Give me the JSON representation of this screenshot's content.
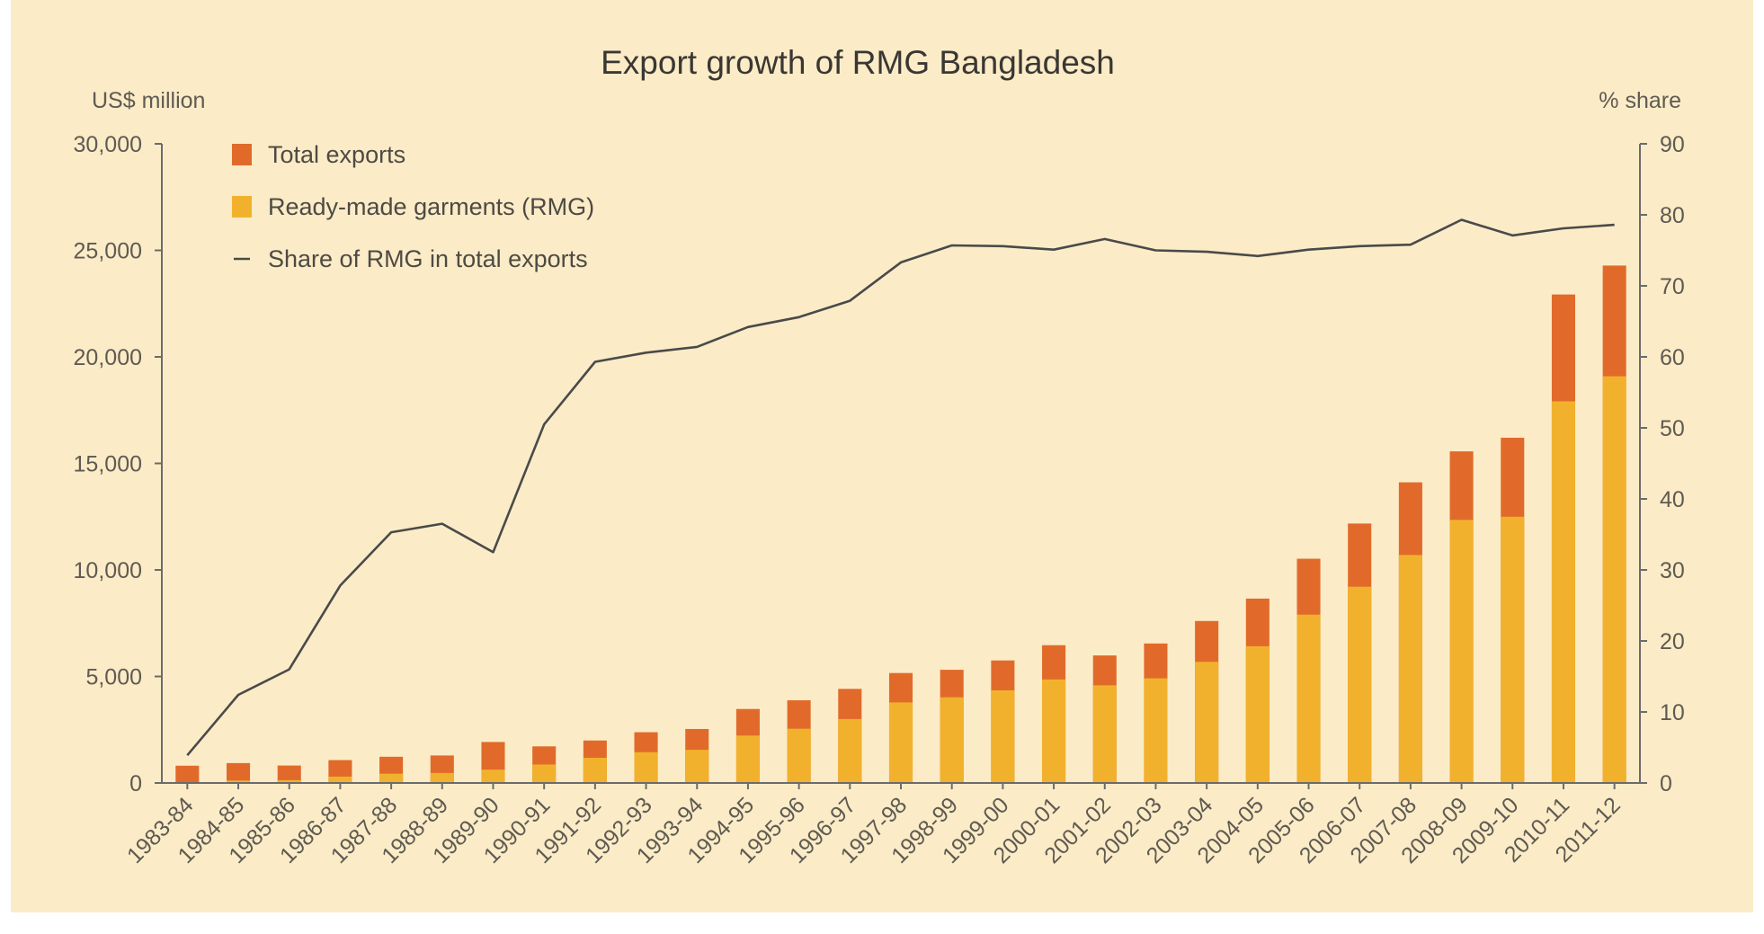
{
  "chart_data": {
    "type": "bar",
    "title": "Export growth of RMG Bangladesh",
    "ylabel_left": "US$ million",
    "ylabel_right": "% share",
    "ylim_left": [
      0,
      30000
    ],
    "ylim_right": [
      0,
      90
    ],
    "yticks_left": [
      "30,000",
      "25,000",
      "20,000",
      "15,000",
      "10,000",
      "5,000",
      "0"
    ],
    "yticks_right": [
      "90",
      "80",
      "70",
      "60",
      "50",
      "40",
      "30",
      "20",
      "10",
      "0"
    ],
    "categories": [
      "1983-84",
      "1984-85",
      "1985-86",
      "1986-87",
      "1987-88",
      "1988-89",
      "1989-90",
      "1990-91",
      "1991-92",
      "1992-93",
      "1993-94",
      "1994-95",
      "1995-96",
      "1996-97",
      "1997-98",
      "1998-99",
      "1999-00",
      "2000-01",
      "2001-02",
      "2002-03",
      "2003-04",
      "2004-05",
      "2005-06",
      "2006-07",
      "2007-08",
      "2008-09",
      "2009-10",
      "2010-11",
      "2011-12"
    ],
    "series": [
      {
        "name": "Total exports",
        "kind": "bar",
        "color": "#e16a2b",
        "values": [
          811,
          934,
          819,
          1074,
          1231,
          1291,
          1924,
          1718,
          1994,
          2383,
          2534,
          3473,
          3882,
          4418,
          5161,
          5313,
          5752,
          6467,
          5986,
          6548,
          7603,
          8655,
          10526,
          12178,
          14111,
          15565,
          16205,
          22928,
          24287
        ]
      },
      {
        "name": "Ready-made garments (RMG)",
        "kind": "bar",
        "color": "#f2b12d",
        "values": [
          32,
          116,
          131,
          299,
          434,
          471,
          625,
          866,
          1182,
          1445,
          1556,
          2228,
          2547,
          3001,
          3781,
          4020,
          4349,
          4860,
          4584,
          4912,
          5686,
          6418,
          7901,
          9211,
          10700,
          12347,
          12497,
          17914,
          19090
        ]
      },
      {
        "name": "Share of RMG in total exports",
        "kind": "line",
        "color": "#4a4a4a",
        "axis": "right",
        "values": [
          3.9,
          12.4,
          16.0,
          27.8,
          35.3,
          36.5,
          32.5,
          50.5,
          59.3,
          60.6,
          61.4,
          64.2,
          65.6,
          67.9,
          73.3,
          75.7,
          75.6,
          75.1,
          76.6,
          75.0,
          74.8,
          74.2,
          75.1,
          75.6,
          75.8,
          79.3,
          77.1,
          78.1,
          78.6
        ]
      }
    ],
    "legend_position": "top-left",
    "grid": false
  }
}
